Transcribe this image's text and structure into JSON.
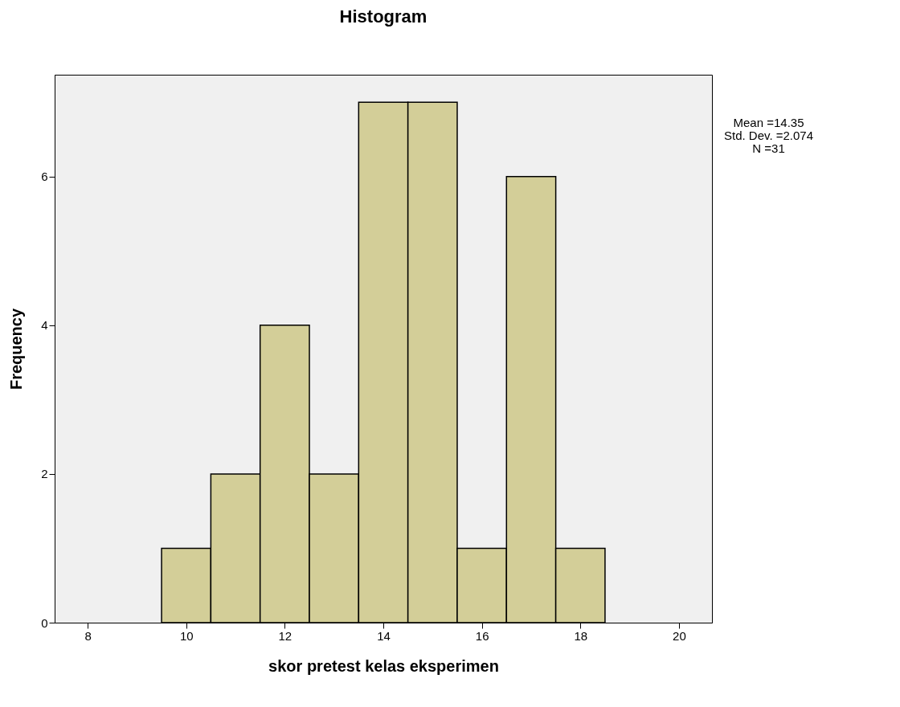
{
  "chart_data": {
    "type": "histogram",
    "title": "Histogram",
    "xlabel": "skor pretest kelas eksperimen",
    "ylabel": "Frequency",
    "bins": [
      9.5,
      10.5,
      11.5,
      12.5,
      13.5,
      14.5,
      15.5,
      16.5,
      17.5,
      18.5
    ],
    "values": [
      1,
      2,
      4,
      2,
      7,
      7,
      1,
      6,
      1
    ],
    "color": "#d3ce98",
    "xlim": [
      7.33,
      20.67
    ],
    "ylim": [
      0,
      7.37
    ],
    "xticks": [
      8,
      10,
      12,
      14,
      16,
      18,
      20
    ],
    "yticks": [
      0,
      2,
      4,
      6
    ],
    "grid": false,
    "annotations": [
      "Mean =14.35",
      "Std. Dev. =2.074",
      "N =31"
    ]
  }
}
